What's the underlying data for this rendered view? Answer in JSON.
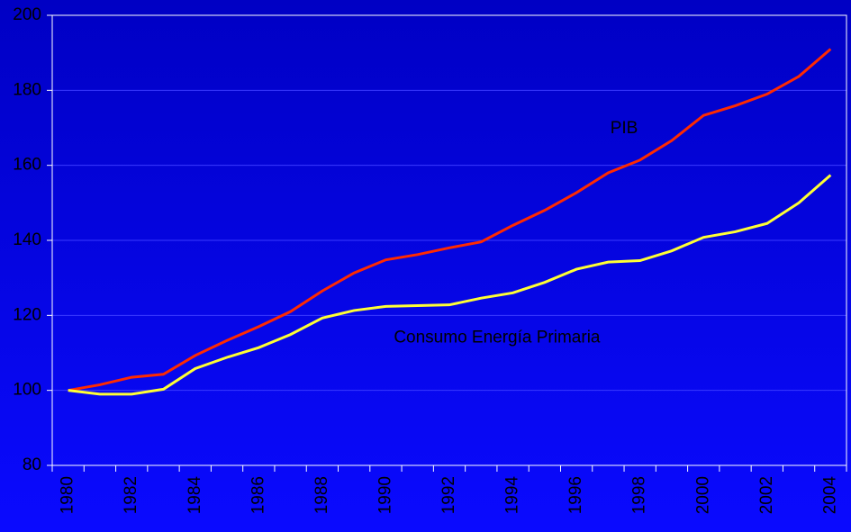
{
  "chart_data": {
    "type": "line",
    "categories": [
      "1980",
      null,
      "1982",
      null,
      "1984",
      null,
      "1986",
      null,
      "1988",
      null,
      "1990",
      null,
      "1992",
      null,
      "1994",
      null,
      "1996",
      null,
      "1998",
      null,
      "2000",
      null,
      "2002",
      null,
      "2004"
    ],
    "series": [
      {
        "name": "PIB",
        "color": "#ff2a00",
        "values": [
          100,
          101.5,
          103.5,
          104.3,
          109.3,
          113.3,
          117,
          121,
          126.5,
          131.3,
          134.8,
          136.2,
          138,
          139.6,
          144,
          148,
          152.7,
          158,
          161.4,
          166.6,
          173.3,
          175.9,
          179,
          183.7,
          191
        ]
      },
      {
        "name": "Consumo Energía Primaria",
        "color": "#ffff33",
        "values": [
          100,
          99,
          99,
          100.3,
          105.8,
          108.8,
          111.4,
          114.9,
          119.3,
          121.3,
          122.4,
          122.6,
          122.8,
          124.6,
          126,
          128.8,
          132.3,
          134.2,
          134.6,
          137.2,
          140.8,
          142.3,
          144.5,
          150,
          157.4
        ]
      }
    ],
    "ylim": [
      80,
      200
    ],
    "yticks": [
      80,
      100,
      120,
      140,
      160,
      180,
      200
    ],
    "grid": true
  }
}
